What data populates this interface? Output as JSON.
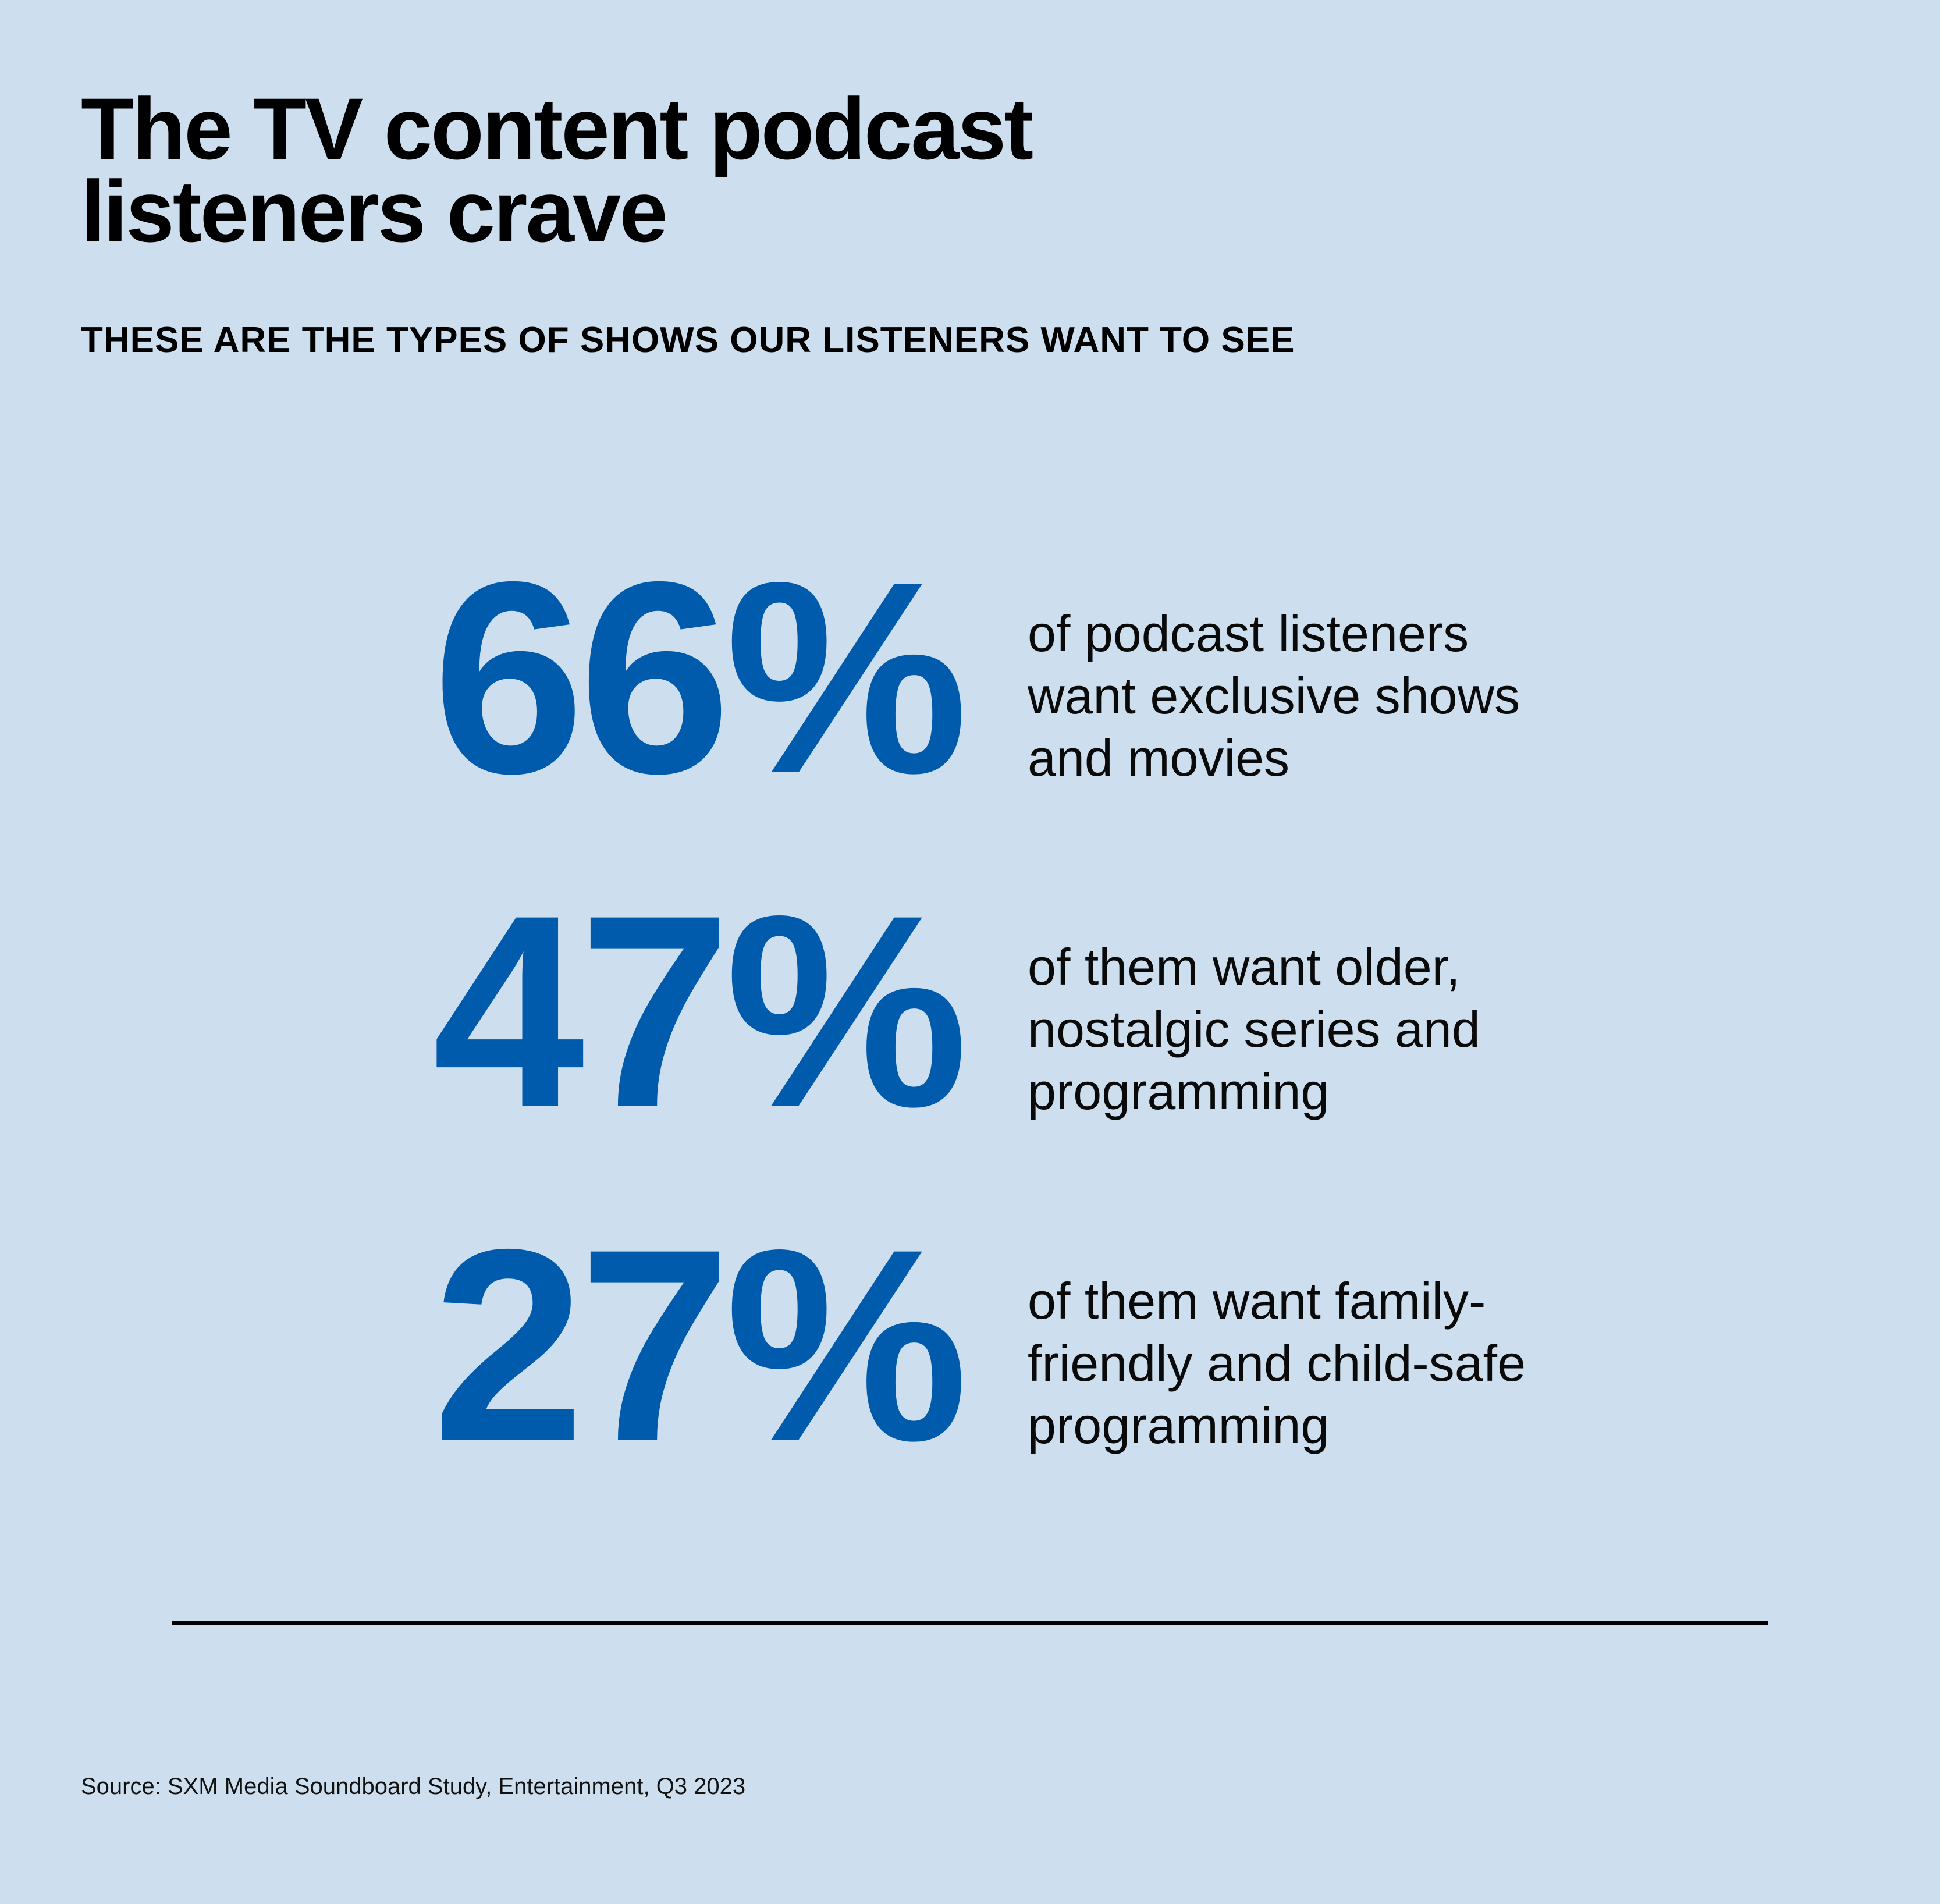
{
  "header": {
    "title_lines": [
      "The TV content podcast",
      "listeners crave"
    ],
    "subtitle": "THESE ARE THE TYPES OF SHOWS OUR LISTENERS WANT TO SEE"
  },
  "stats": [
    {
      "value": "66%",
      "description_lines": [
        "of podcast listeners",
        "want exclusive shows",
        "and movies"
      ]
    },
    {
      "value": "47%",
      "description_lines": [
        "of them want older,",
        "nostalgic series and",
        "programming"
      ]
    },
    {
      "value": "27%",
      "description_lines": [
        "of them want family-",
        "friendly and child-safe",
        "programming"
      ]
    }
  ],
  "footer": {
    "source": "Source: SXM Media Soundboard Study, Entertainment, Q3 2023"
  },
  "colors": {
    "background": "#cddeee",
    "accent": "#005bac",
    "text": "#000000"
  }
}
